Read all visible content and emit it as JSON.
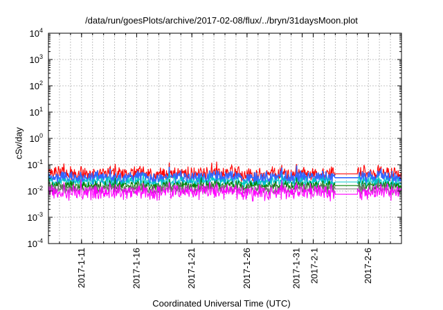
{
  "chart_data": {
    "type": "line",
    "title": "/data/run/goesPlots/archive/2017-02-08/flux/../bryn/31daysMoon.plot",
    "xlabel": "Coordinated Universal Time (UTC)",
    "ylabel": "cSv/day",
    "yscale": "log",
    "ylim": [
      0.0001,
      10000
    ],
    "yticks": [
      {
        "value": 0.0001,
        "base": "10",
        "exp": "-4"
      },
      {
        "value": 0.001,
        "base": "10",
        "exp": "-3"
      },
      {
        "value": 0.01,
        "base": "10",
        "exp": "-2"
      },
      {
        "value": 0.1,
        "base": "10",
        "exp": "-1"
      },
      {
        "value": 1,
        "base": "10",
        "exp": "0"
      },
      {
        "value": 10,
        "base": "10",
        "exp": "1"
      },
      {
        "value": 100,
        "base": "10",
        "exp": "2"
      },
      {
        "value": 1000,
        "base": "10",
        "exp": "3"
      },
      {
        "value": 10000,
        "base": "10",
        "exp": "4"
      }
    ],
    "xlim": [
      "2017-01-08",
      "2017-02-09"
    ],
    "xticks": [
      {
        "date": "2017-01-11",
        "label": "2017-1-11"
      },
      {
        "date": "2017-01-16",
        "label": "2017-1-16"
      },
      {
        "date": "2017-01-21",
        "label": "2017-1-21"
      },
      {
        "date": "2017-01-26",
        "label": "2017-1-26"
      },
      {
        "date": "2017-01-31",
        "label": "2017-1-31"
      },
      {
        "date": "2017-02-01",
        "label": "2017-2-1"
      },
      {
        "date": "2017-02-06",
        "label": "2017-2-6"
      }
    ],
    "grid": true,
    "legend": "none",
    "data_gap": [
      "2017-02-03",
      "2017-02-05"
    ],
    "series": [
      {
        "color": "#ff0000",
        "base": 0.045,
        "spread": 0.45,
        "gap_level": 0.045
      },
      {
        "color": "#3366ff",
        "base": 0.032,
        "spread": 0.4,
        "gap_level": 0.032
      },
      {
        "color": "#00c8c8",
        "base": 0.022,
        "spread": 0.32,
        "gap_level": 0.022
      },
      {
        "color": "#008000",
        "base": 0.016,
        "spread": 0.28,
        "gap_level": 0.016
      },
      {
        "color": "#707070",
        "base": 0.012,
        "spread": 0.35,
        "gap_level": 0.012
      },
      {
        "color": "#ff00ff",
        "base": 0.009,
        "spread": 0.5,
        "gap_level": 0.0075
      }
    ]
  }
}
